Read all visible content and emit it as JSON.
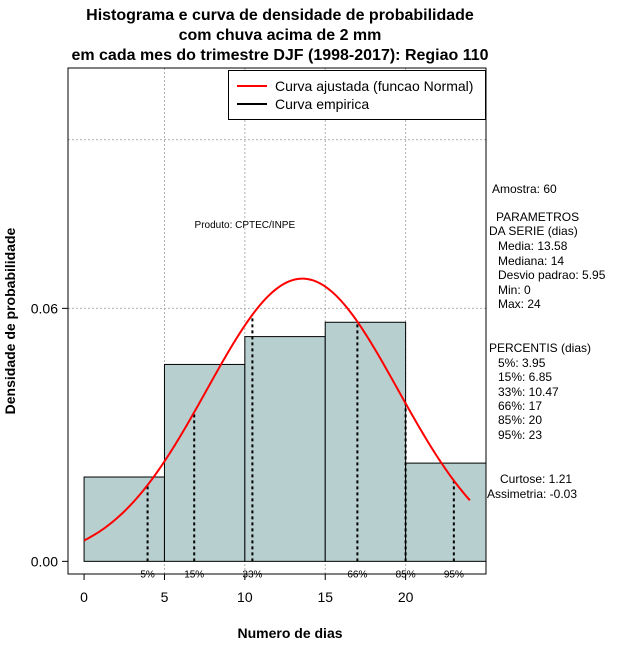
{
  "chart_data": {
    "type": "histogram",
    "title_lines": [
      "Histograma e curva de densidade de probabilidade",
      "com chuva acima de 2 mm",
      "em cada mes do trimestre DJF (1998-2017): Regiao 110"
    ],
    "xlabel": "Numero de dias",
    "ylabel": "Densidade de probabilidade",
    "xlim": [
      -1,
      25
    ],
    "ylim": [
      -0.003,
      0.117
    ],
    "x_ticks": [
      0,
      5,
      10,
      15,
      20
    ],
    "y_ticks": [
      0.0,
      0.06
    ],
    "y_tick_labels": [
      "0.00",
      "0.06"
    ],
    "grid_x": [
      5,
      10,
      15,
      20
    ],
    "grid_y": [
      0.06,
      0.1
    ],
    "bars": [
      {
        "x0": 0,
        "x1": 5,
        "density": 0.02
      },
      {
        "x0": 5,
        "x1": 10,
        "density": 0.0467
      },
      {
        "x0": 10,
        "x1": 15,
        "density": 0.0533
      },
      {
        "x0": 15,
        "x1": 20,
        "density": 0.0567
      },
      {
        "x0": 20,
        "x1": 25,
        "density": 0.0233
      }
    ],
    "bar_color": "#b8cfcf",
    "normal_curve": {
      "mean": 13.58,
      "sd": 5.95,
      "x_range": [
        0,
        24
      ],
      "color": "#ff0000"
    },
    "percentile_lines": [
      {
        "label": "5%",
        "value": 3.95
      },
      {
        "label": "15%",
        "value": 6.85
      },
      {
        "label": "33%",
        "value": 10.47
      },
      {
        "label": "66%",
        "value": 17
      },
      {
        "label": "85%",
        "value": 20
      },
      {
        "label": "95%",
        "value": 23
      }
    ],
    "legend": [
      {
        "label": "Curva ajustada (funcao Normal)",
        "color": "#ff0000"
      },
      {
        "label": "Curva empirica",
        "color": "#000000"
      }
    ],
    "produto_label": "Produto: CPTEC/INPE"
  },
  "stats": {
    "amostra": "Amostra: 60",
    "param_title_1": "PARAMETROS",
    "param_title_2": "DA SERIE (dias)",
    "media": "Media: 13.58",
    "mediana": "Mediana: 14",
    "desvio": "Desvio padrao: 5.95",
    "min": "Min: 0",
    "max": "Max: 24",
    "perc_title": "PERCENTIS (dias)",
    "p5": "5%: 3.95",
    "p15": "15%: 6.85",
    "p33": "33%: 10.47",
    "p66": "66%: 17",
    "p85": "85%: 20",
    "p95": "95%: 23",
    "curtose": "Curtose: 1.21",
    "assimetria": "Assimetria: -0.03"
  }
}
